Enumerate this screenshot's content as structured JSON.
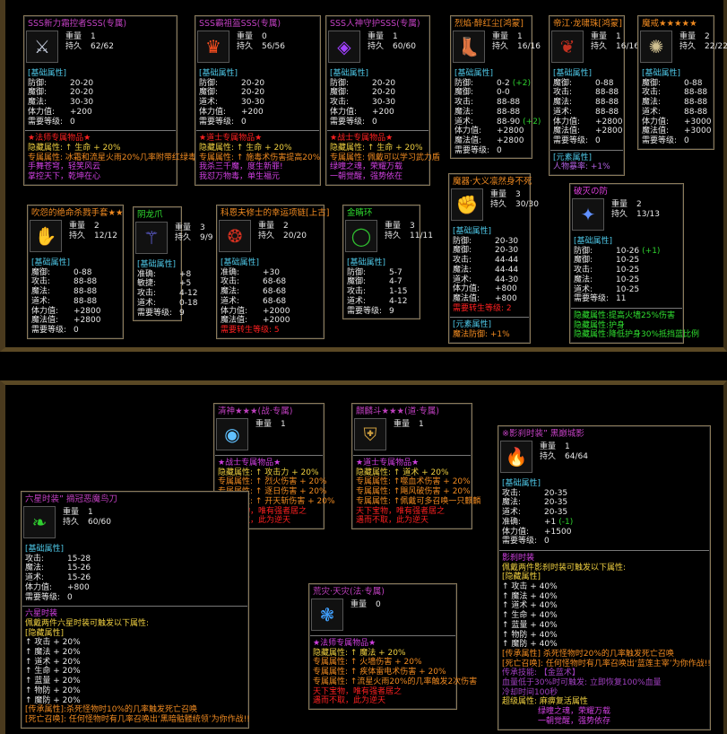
{
  "colors": {
    "frame": "#8a7a5a",
    "attr_heading": "#4ec8e8",
    "bonus": "#2ed02e",
    "magenta": "#d040e0",
    "orange": "#f08a20",
    "yellow": "#f0d040",
    "red": "#ff2020",
    "green": "#30e030",
    "white": "#e8e8e8",
    "purple": "#b060e0"
  },
  "labels": {
    "weight": "重量",
    "durability": "持久",
    "base_attr": "[基础属性]"
  },
  "items": [
    {
      "title": "SSS新力霜控者SSS(专属)",
      "title_color": "#c040c0",
      "icon": "trident-icon",
      "glyph": "⚔",
      "glyph_color": "#c0c8d8",
      "weight": "1",
      "durability": "62/62",
      "stats": [
        [
          "防御:",
          "20-20"
        ],
        [
          "魔御:",
          "20-20"
        ],
        [
          "魔法:",
          "30-30"
        ],
        [
          "体力值:",
          "+200"
        ],
        [
          "需要等级:",
          "0"
        ]
      ],
      "lines": [
        [
          "★法师专属物品★",
          "#ff2020"
        ],
        [
          "隐藏属性: ↑ 生命 + 20%",
          "#f0d040"
        ],
        [
          "专属属性: 冰霜和流星火雨20%几率附带红绿毒",
          "#f08a20"
        ],
        [
          "手舞苍穹，轻笑风云",
          "#d040e0"
        ],
        [
          "掌控天下，乾坤在心",
          "#d040e0"
        ]
      ]
    },
    {
      "title": "SSS霸祖盔SSS(专属)",
      "title_color": "#c040c0",
      "icon": "helmet-icon",
      "glyph": "♛",
      "glyph_color": "#ff5020",
      "weight": "0",
      "durability": "56/56",
      "stats": [
        [
          "防御:",
          "20-20"
        ],
        [
          "魔御:",
          "20-20"
        ],
        [
          "道术:",
          "30-30"
        ],
        [
          "体力值:",
          "+200"
        ],
        [
          "需要等级:",
          "0"
        ]
      ],
      "lines": [
        [
          "★道士专属物品★",
          "#ff2020"
        ],
        [
          "隐藏属性: ↑ 生命 + 20%",
          "#f0d040"
        ],
        [
          "专属属性: ↑ 施毒术伤害提高20%",
          "#f08a20"
        ],
        [
          "我杀三千魔，度生新罪!",
          "#d040e0"
        ],
        [
          "我怼万物毒，单生福元",
          "#d040e0"
        ]
      ]
    },
    {
      "title": "SSS人神守护SSS(专属)",
      "title_color": "#c040c0",
      "icon": "amulet-icon",
      "glyph": "◈",
      "glyph_color": "#a040ff",
      "weight": "1",
      "durability": "60/60",
      "stats": [
        [
          "防御:",
          "20-20"
        ],
        [
          "魔御:",
          "20-20"
        ],
        [
          "攻击:",
          "30-30"
        ],
        [
          "体力值:",
          "+200"
        ],
        [
          "需要等级:",
          "0"
        ]
      ],
      "lines": [
        [
          "★战士专属物品★",
          "#ff2020"
        ],
        [
          "隐藏属性: ↑ 生命 + 20%",
          "#f0d040"
        ],
        [
          "专属属性: 佩戴可以学习武力盾",
          "#f08a20"
        ],
        [
          "绿曈之魂，荣耀万载",
          "#d040e0"
        ],
        [
          "一朝觉醒，强势依在",
          "#d040e0"
        ]
      ]
    },
    {
      "title": "烈焰·醉红尘[鸿蒙]",
      "title_color": "#f08a20",
      "icon": "boots-icon",
      "glyph": "👢",
      "glyph_color": "#c8b070",
      "weight": "1",
      "durability": "16/16",
      "stats": [
        [
          "防御:",
          "0-2",
          "(+2)"
        ],
        [
          "魔御:",
          "0-0"
        ],
        [
          "攻击:",
          "88-88"
        ],
        [
          "魔法:",
          "88-88"
        ],
        [
          "道术:",
          "88-90",
          "(+2)"
        ],
        [
          "体力值:",
          "+2800"
        ],
        [
          "魔法值:",
          "+2800"
        ],
        [
          "需要等级:",
          "0"
        ]
      ],
      "lines": []
    },
    {
      "title": "帝江·龙啸珠[鸿蒙]",
      "title_color": "#f08a20",
      "icon": "necklace-icon",
      "glyph": "❦",
      "glyph_color": "#c03020",
      "weight": "1",
      "durability": "16/16",
      "stats": [
        [
          "魔御:",
          "0-88"
        ],
        [
          "攻击:",
          "88-88"
        ],
        [
          "魔法:",
          "88-88"
        ],
        [
          "道术:",
          "88-88"
        ],
        [
          "体力值:",
          "+2800"
        ],
        [
          "魔法值:",
          "+2800"
        ],
        [
          "需要等级:",
          "0"
        ]
      ],
      "lines": [
        [
          "[元素属性]",
          "#4ec8e8"
        ],
        [
          "人物暴率:      +1%",
          "#b060e0"
        ]
      ]
    },
    {
      "title": "魔戒★★★★★",
      "title_color": "#f08a20",
      "icon": "ring-icon",
      "glyph": "✺",
      "glyph_color": "#d0c090",
      "weight": "2",
      "durability": "22/22",
      "stats": [
        [
          "魔御:",
          "0-88"
        ],
        [
          "攻击:",
          "88-88"
        ],
        [
          "魔法:",
          "88-88"
        ],
        [
          "道术:",
          "88-88"
        ],
        [
          "体力值:",
          "+3000"
        ],
        [
          "魔法值:",
          "+3000"
        ],
        [
          "需要等级:",
          "0"
        ]
      ],
      "lines": []
    },
    {
      "title": "吹怨的绝命杀戮手套★★",
      "title_color": "#f08a20",
      "icon": "gauntlet-icon",
      "glyph": "✋",
      "glyph_color": "#c8a040",
      "weight": "2",
      "durability": "12/12",
      "stats": [
        [
          "魔御:",
          "0-88"
        ],
        [
          "攻击:",
          "88-88"
        ],
        [
          "魔法:",
          "88-88"
        ],
        [
          "道术:",
          "88-88"
        ],
        [
          "体力值:",
          "+2800"
        ],
        [
          "魔法值:",
          "+2800"
        ],
        [
          "需要等级:",
          "0"
        ]
      ],
      "lines": []
    },
    {
      "title": "阴龙爪",
      "title_color": "#30e030",
      "icon": "claw-icon",
      "glyph": "⚚",
      "glyph_color": "#7070ff",
      "weight": "3",
      "durability": "9/9",
      "stats": [
        [
          "准确:",
          "+8"
        ],
        [
          "敏捷:",
          "+5"
        ],
        [
          "攻击:",
          "4-12"
        ],
        [
          "道术:",
          "0-18"
        ],
        [
          "需要等级:",
          "9"
        ]
      ],
      "lines": []
    },
    {
      "title": "科恩夫修士的幸运项链[上古]",
      "title_color": "#f08a20",
      "icon": "necklace-icon",
      "glyph": "❂",
      "glyph_color": "#d03020",
      "weight": "2",
      "durability": "20/20",
      "stats": [
        [
          "准确:",
          "+30"
        ],
        [
          "攻击:",
          "68-68"
        ],
        [
          "魔法:",
          "68-68"
        ],
        [
          "道术:",
          "68-68"
        ],
        [
          "体力值:",
          "+2000"
        ],
        [
          "魔法值:",
          "+2000"
        ]
      ],
      "after": [
        [
          "需要转生等级:  5",
          "#ff2020"
        ]
      ],
      "lines": []
    },
    {
      "title": "金睛环",
      "title_color": "#30e030",
      "icon": "ring-icon",
      "glyph": "◯",
      "glyph_color": "#30c030",
      "weight": "3",
      "durability": "11/11",
      "stats": [
        [
          "防御:",
          "5-7"
        ],
        [
          "魔御:",
          "4-7"
        ],
        [
          "攻击:",
          "1-15"
        ],
        [
          "道术:",
          "4-12"
        ],
        [
          "需要等级:",
          "9"
        ]
      ],
      "lines": []
    },
    {
      "title": "魔器·大义凛然身不死",
      "title_color": "#f08a20",
      "icon": "glove-icon",
      "glyph": "✊",
      "glyph_color": "#d0a030",
      "weight": "3",
      "durability": "30/30",
      "stats": [
        [
          "防御:",
          "20-30"
        ],
        [
          "魔御:",
          "20-30"
        ],
        [
          "攻击:",
          "44-44"
        ],
        [
          "魔法:",
          "44-44"
        ],
        [
          "道术:",
          "44-30"
        ],
        [
          "体力值:",
          "+800"
        ],
        [
          "魔法值:",
          "+800"
        ]
      ],
      "after": [
        [
          "需要转生等级:  2",
          "#ff2020"
        ]
      ],
      "lines": [
        [
          "[元素属性]",
          "#4ec8e8"
        ],
        [
          "魔法防御:      +1%",
          "#f08a20"
        ]
      ]
    },
    {
      "title": "破灭の防",
      "title_color": "#e040e0",
      "icon": "bracer-icon",
      "glyph": "✦",
      "glyph_color": "#6090ff",
      "weight": "2",
      "durability": "13/13",
      "stats": [
        [
          "防御:",
          "10-26",
          "(+1)"
        ],
        [
          "魔御:",
          "10-25"
        ],
        [
          "攻击:",
          "10-25"
        ],
        [
          "魔法:",
          "10-25"
        ],
        [
          "道术:",
          "10-25"
        ],
        [
          "需要等级:",
          "11"
        ]
      ],
      "lines": [
        [
          "隐藏属性:提高火墙25%伤害",
          "#30e030"
        ],
        [
          "隐藏属性:护身",
          "#30e030"
        ],
        [
          "隐藏属性:降低护身30%抵挡蓝比例",
          "#30e030"
        ]
      ]
    },
    {
      "title": "清神★★★(战·专属)",
      "title_color": "#c040c0",
      "icon": "medal-icon",
      "glyph": "◉",
      "glyph_color": "#60c0ff",
      "weight": "1",
      "durability": null,
      "stats": [],
      "lines": [
        [
          "★战士专属物品★",
          "#d040e0"
        ],
        [
          "隐藏属性: ↑  攻击力 + 20%",
          "#f0d040"
        ],
        [
          "专属属性: ↑  烈火伤害  + 20%",
          "#f08a20"
        ],
        [
          "专属属性: ↑  逐日伤害  + 20%",
          "#f08a20"
        ],
        [
          "专属属性: ↑  开天斩伤害  + 20%",
          "#f08a20"
        ],
        [
          "天下宝物，唯有强者居之",
          "#ff2020"
        ],
        [
          "遇而不取，此为逆天",
          "#ff2020"
        ]
      ]
    },
    {
      "title": "麒麟斗★★★(道·专属)",
      "title_color": "#c040c0",
      "icon": "shield-icon",
      "glyph": "⛨",
      "glyph_color": "#d0a040",
      "weight": "1",
      "durability": null,
      "stats": [],
      "lines": [
        [
          "★道士专属物品★",
          "#d040e0"
        ],
        [
          "隐藏属性: ↑  道术 + 20%",
          "#f0d040"
        ],
        [
          "专属属性: ↑噬血术伤害  + 20%",
          "#f08a20"
        ],
        [
          "专属属性: ↑飓风破伤害  + 20%",
          "#f08a20"
        ],
        [
          "专属属性: ↑佩戴可多召唤一只麒麟",
          "#f08a20"
        ],
        [
          "天下宝物，唯有强者居之",
          "#ff2020"
        ],
        [
          "遇而不取，此为逆天",
          "#ff2020"
        ]
      ]
    },
    {
      "title": "※影刹时装” 黑巅城影",
      "title_color": "#c040c0",
      "icon": "flame-weapon-icon",
      "glyph": "🔥",
      "glyph_color": "#ffa020",
      "weight": "1",
      "durability": "64/64",
      "stats": [
        [
          "攻击:",
          "20-35"
        ],
        [
          "魔法:",
          "20-35"
        ],
        [
          "道术:",
          "20-35"
        ],
        [
          "准确:",
          "+1",
          "(-1)"
        ],
        [
          "体力值:",
          "+1500"
        ],
        [
          "需要等级:",
          "0"
        ]
      ],
      "lines": [
        [
          "影刹时装",
          "#d040e0"
        ],
        [
          "佩戴两件影刹时装可触发以下属性:",
          "#f0d040"
        ],
        [
          "[隐藏属性]",
          "#f0d040"
        ],
        [
          "↑  攻击  + 40%",
          "#e8e8e8"
        ],
        [
          "↑  魔法  + 40%",
          "#e8e8e8"
        ],
        [
          "↑  道术  + 40%",
          "#e8e8e8"
        ],
        [
          "↑  生命  + 40%",
          "#e8e8e8"
        ],
        [
          "↑  蓝量  + 40%",
          "#e8e8e8"
        ],
        [
          "↑  物防  + 40%",
          "#e8e8e8"
        ],
        [
          "↑  魔防  + 40%",
          "#e8e8e8"
        ],
        [
          "[传承属性] 杀死怪物时20%的几率触发死亡召唤",
          "#f08a20"
        ],
        [
          "[死亡召唤]: 任何怪物时有几率召唤出‘蓝莲主宰’为你作战!!",
          "#f08a20"
        ],
        [
          "传承技能: 【金蓝术】",
          "#a040c0"
        ],
        [
          "血量低于30%时可触发: 立即恢复100%血量",
          "#a040c0"
        ],
        [
          "冷却时间100秒",
          "#a040c0"
        ],
        [
          "超级属性: 麻痹复活属性",
          "#f0d040"
        ],
        [
          "绿曈之魂，荣耀万载",
          "#d040e0",
          1
        ],
        [
          "一朝觉醒，强势依存",
          "#d040e0",
          1
        ]
      ]
    },
    {
      "title": "六星时装” 摘冠恶魔鸟刀",
      "title_color": "#c040c0",
      "icon": "green-weapon-icon",
      "glyph": "❧",
      "glyph_color": "#30d030",
      "weight": "1",
      "durability": "60/60",
      "stats": [
        [
          "攻击:",
          "15-28"
        ],
        [
          "魔法:",
          "15-26"
        ],
        [
          "道术:",
          "15-26"
        ],
        [
          "体力值:",
          "+800"
        ],
        [
          "需要等级:",
          "0"
        ]
      ],
      "lines": [
        [
          "六星时装",
          "#d040e0"
        ],
        [
          "佩戴两件六星时装可触发以下属性:",
          "#f0d040"
        ],
        [
          "[隐藏属性]",
          "#f0d040"
        ],
        [
          "↑  攻击  + 20%",
          "#e8e8e8"
        ],
        [
          "↑  魔法  + 20%",
          "#e8e8e8"
        ],
        [
          "↑  道术  + 20%",
          "#e8e8e8"
        ],
        [
          "↑  生命  + 20%",
          "#e8e8e8"
        ],
        [
          "↑  蓝量  + 20%",
          "#e8e8e8"
        ],
        [
          "↑  物防  + 20%",
          "#e8e8e8"
        ],
        [
          "↑  魔防  + 20%",
          "#e8e8e8"
        ],
        [
          "[传承属性]:杀死怪物时10%的几率触发死亡召唤",
          "#f08a20"
        ],
        [
          "[死亡召唤]: 任何怪物时有几率召唤出‘黑暗骷髅统领’为你作战!!",
          "#f08a20"
        ]
      ]
    },
    {
      "title": "荒灾·天灾(法·专属)",
      "title_color": "#c040c0",
      "icon": "feather-icon",
      "glyph": "❃",
      "glyph_color": "#40a0ff",
      "weight": "0",
      "durability": null,
      "stats": [],
      "lines": [
        [
          "★法师专属物品★",
          "#d040e0"
        ],
        [
          "隐藏属性: ↑  魔法  + 20%",
          "#f0d040"
        ],
        [
          "专属属性: ↑  火墙伤害  + 20%",
          "#f08a20"
        ],
        [
          "专属属性: ↑  疾体雷电术伤害  + 20%",
          "#f08a20"
        ],
        [
          "专属属性: ↑流星火雨20%的几率触发2次伤害",
          "#f08a20"
        ],
        [
          "天下宝物，唯有强者居之",
          "#ff2020"
        ],
        [
          "遇而不取，此为逆天",
          "#ff2020"
        ]
      ]
    }
  ]
}
